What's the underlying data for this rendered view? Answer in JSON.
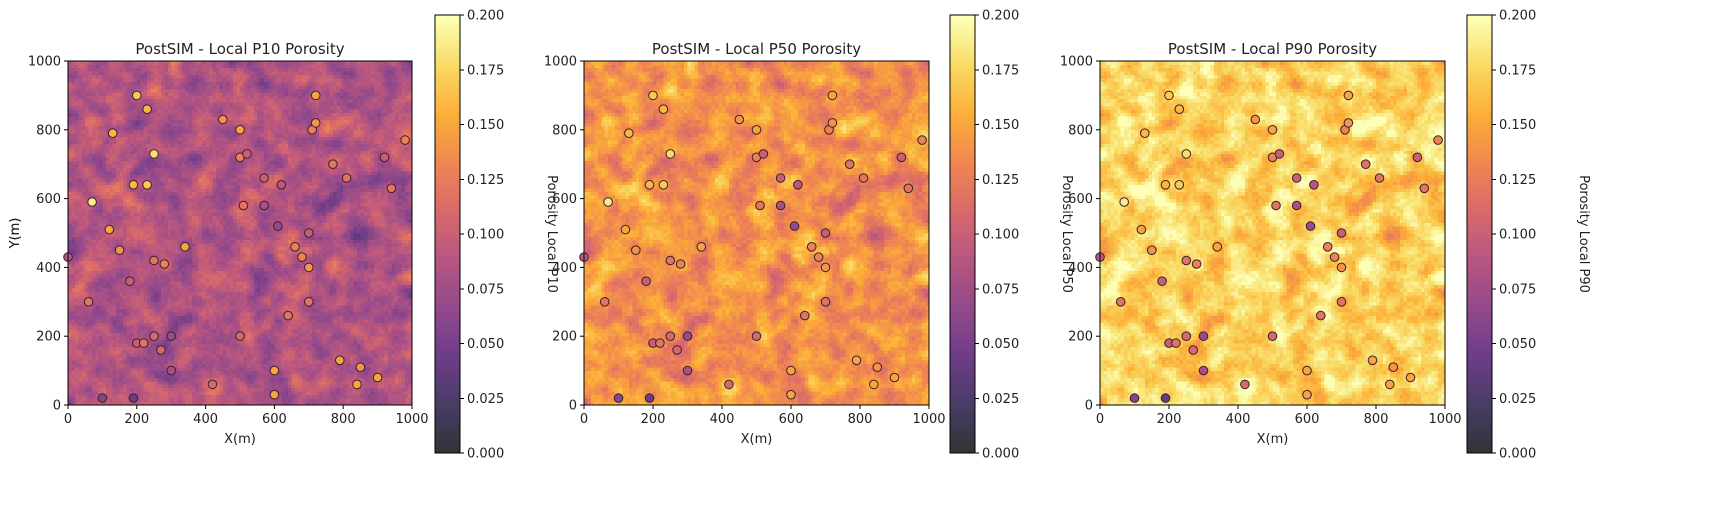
{
  "figure": {
    "colormap": "inferno",
    "colormap_stops": [
      "#000004",
      "#1b0c41",
      "#4a0c6b",
      "#781c6d",
      "#a52c60",
      "#cf4446",
      "#ed6925",
      "#fb9b06",
      "#f7d13d",
      "#fcffa4"
    ],
    "map_alpha": 0.8,
    "background": "#ffffff"
  },
  "chart_data": [
    {
      "type": "heatmap",
      "title": "PostSIM - Local P10 Porosity",
      "xlabel": "X(m)",
      "ylabel": "Y(m)",
      "xlim": [
        0,
        1000
      ],
      "ylim": [
        0,
        1000
      ],
      "xticks": [
        "0",
        "200",
        "400",
        "600",
        "800",
        "1000"
      ],
      "yticks": [
        "0",
        "200",
        "400",
        "600",
        "800",
        "1000"
      ],
      "colorbar": {
        "label": "Porosity Local P10",
        "range": [
          0.0,
          0.2
        ],
        "ticks": [
          "0.000",
          "0.025",
          "0.050",
          "0.075",
          "0.100",
          "0.125",
          "0.150",
          "0.175",
          "0.200"
        ]
      },
      "field_mean": 0.085
    },
    {
      "type": "heatmap",
      "title": "PostSIM - Local P50 Porosity",
      "xlabel": "X(m)",
      "ylabel": "Y(m)",
      "xlim": [
        0,
        1000
      ],
      "ylim": [
        0,
        1000
      ],
      "xticks": [
        "0",
        "200",
        "400",
        "600",
        "800",
        "1000"
      ],
      "yticks": [
        "0",
        "200",
        "400",
        "600",
        "800",
        "1000"
      ],
      "colorbar": {
        "label": "Porosity Local P50",
        "range": [
          0.0,
          0.2
        ],
        "ticks": [
          "0.000",
          "0.025",
          "0.050",
          "0.075",
          "0.100",
          "0.125",
          "0.150",
          "0.175",
          "0.200"
        ]
      },
      "field_mean": 0.14
    },
    {
      "type": "heatmap",
      "title": "PostSIM - Local P90 Porosity",
      "xlabel": "X(m)",
      "ylabel": "",
      "xlim": [
        0,
        1000
      ],
      "ylim": [
        0,
        1000
      ],
      "xticks": [
        "0",
        "200",
        "400",
        "600",
        "800",
        "1000"
      ],
      "yticks": [
        "0",
        "200",
        "400",
        "600",
        "800",
        "1000"
      ],
      "colorbar": {
        "label": "Porosity Local P90",
        "range": [
          0.0,
          0.2
        ],
        "ticks": [
          "0.000",
          "0.025",
          "0.050",
          "0.075",
          "0.100",
          "0.125",
          "0.150",
          "0.175",
          "0.200"
        ]
      },
      "field_mean": 0.175
    }
  ],
  "wells": {
    "x": [
      0,
      60,
      70,
      100,
      120,
      130,
      150,
      180,
      190,
      190,
      200,
      200,
      220,
      230,
      230,
      250,
      250,
      250,
      270,
      280,
      300,
      300,
      340,
      420,
      450,
      500,
      500,
      500,
      510,
      520,
      570,
      570,
      600,
      600,
      610,
      620,
      640,
      660,
      680,
      700,
      700,
      700,
      710,
      720,
      720,
      770,
      790,
      810,
      840,
      850,
      900,
      920,
      940,
      980
    ],
    "y": [
      430,
      300,
      590,
      20,
      510,
      790,
      450,
      360,
      640,
      20,
      900,
      180,
      180,
      640,
      860,
      420,
      730,
      200,
      160,
      410,
      100,
      200,
      460,
      60,
      830,
      200,
      800,
      720,
      580,
      730,
      660,
      580,
      100,
      30,
      520,
      640,
      260,
      460,
      430,
      300,
      400,
      500,
      800,
      820,
      900,
      700,
      130,
      660,
      60,
      110,
      80,
      720,
      630,
      770
    ],
    "porosity": [
      0.09,
      0.12,
      0.19,
      0.06,
      0.15,
      0.16,
      0.14,
      0.1,
      0.16,
      0.04,
      0.17,
      0.1,
      0.12,
      0.17,
      0.16,
      0.12,
      0.18,
      0.11,
      0.11,
      0.13,
      0.08,
      0.07,
      0.15,
      0.11,
      0.14,
      0.11,
      0.15,
      0.13,
      0.12,
      0.1,
      0.1,
      0.08,
      0.15,
      0.15,
      0.07,
      0.09,
      0.12,
      0.13,
      0.13,
      0.12,
      0.14,
      0.1,
      0.13,
      0.14,
      0.15,
      0.12,
      0.15,
      0.12,
      0.15,
      0.14,
      0.15,
      0.1,
      0.12,
      0.13
    ]
  }
}
